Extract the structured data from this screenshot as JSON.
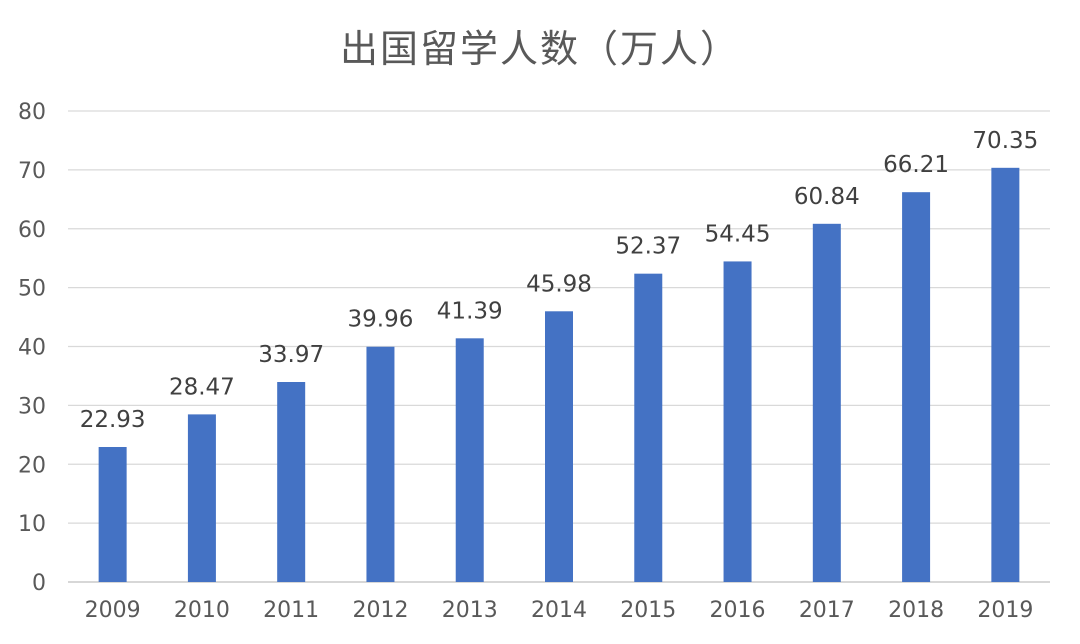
{
  "chart_data": {
    "type": "bar",
    "title": "出国留学人数（万人）",
    "xlabel": "",
    "ylabel": "",
    "categories": [
      "2009",
      "2010",
      "2011",
      "2012",
      "2013",
      "2014",
      "2015",
      "2016",
      "2017",
      "2018",
      "2019"
    ],
    "values": [
      22.93,
      28.47,
      33.97,
      39.96,
      41.39,
      45.98,
      52.37,
      54.45,
      60.84,
      66.21,
      70.35
    ],
    "data_labels": [
      "22.93",
      "28.47",
      "33.97",
      "39.96",
      "41.39",
      "45.98",
      "52.37",
      "54.45",
      "60.84",
      "66.21",
      "70.35"
    ],
    "y_ticks": [
      "0",
      "10",
      "20",
      "30",
      "40",
      "50",
      "60",
      "70",
      "80"
    ],
    "ylim": [
      0,
      80
    ],
    "grid": true,
    "legend": "none",
    "bar_color": "#4472C4",
    "grid_color": "#d9d9d9"
  }
}
